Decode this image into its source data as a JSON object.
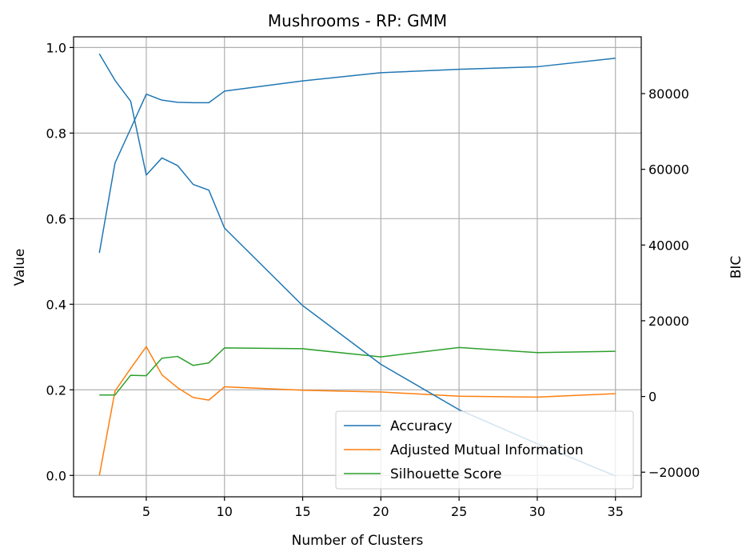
{
  "chart_data": {
    "type": "line",
    "title": "Mushrooms - RP: GMM",
    "xlabel": "Number of Clusters",
    "ylabel": "Value",
    "y2label": "BIC",
    "xlim": [
      0.35,
      36.65
    ],
    "ylim": [
      -0.05,
      1.025
    ],
    "y2lim": [
      -26500,
      95000
    ],
    "x_ticks": [
      5,
      10,
      15,
      20,
      25,
      30,
      35
    ],
    "y_ticks": [
      0.0,
      0.2,
      0.4,
      0.6,
      0.8,
      1.0
    ],
    "y_tick_labels": [
      "0.0",
      "0.2",
      "0.4",
      "0.6",
      "0.8",
      "1.0"
    ],
    "y2_ticks": [
      -20000,
      0,
      20000,
      40000,
      60000,
      80000
    ],
    "y2_tick_labels": [
      "−20000",
      "0",
      "20000",
      "40000",
      "60000",
      "80000"
    ],
    "grid": true,
    "legend_position": "lower-right",
    "x": [
      2,
      3,
      4,
      5,
      6,
      7,
      8,
      9,
      10,
      15,
      20,
      25,
      30,
      35
    ],
    "series": [
      {
        "name": "Accuracy",
        "axis": "left",
        "color": "#1f77b4",
        "values": [
          0.52,
          0.73,
          0.81,
          0.891,
          0.877,
          0.872,
          0.871,
          0.871,
          0.898,
          0.922,
          0.941,
          0.949,
          0.955,
          0.975
        ]
      },
      {
        "name": "Adjusted Mutual Information",
        "axis": "left",
        "color": "#ff7f0e",
        "values": [
          0.0,
          0.197,
          0.25,
          0.301,
          0.235,
          0.205,
          0.182,
          0.176,
          0.207,
          0.199,
          0.195,
          0.185,
          0.183,
          0.191
        ]
      },
      {
        "name": "Silhouette Score",
        "axis": "left",
        "color": "#2ca02c",
        "values": [
          0.188,
          0.188,
          0.234,
          0.233,
          0.274,
          0.278,
          0.257,
          0.263,
          0.298,
          0.296,
          0.277,
          0.299,
          0.287,
          0.29
        ]
      },
      {
        "axis": "right",
        "color": "#1f77b4",
        "values": [
          90500,
          83500,
          78000,
          58500,
          63000,
          61000,
          56000,
          54500,
          44500,
          24000,
          8500,
          -3500,
          -12500,
          -21000
        ]
      }
    ]
  }
}
